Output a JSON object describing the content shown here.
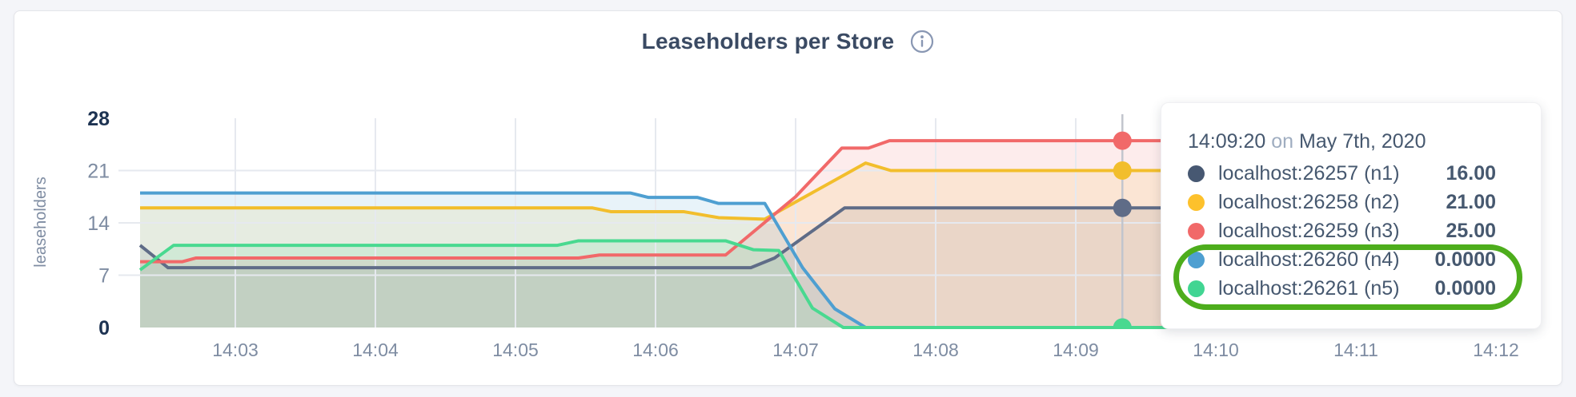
{
  "header": {
    "title": "Leaseholders per Store",
    "info_icon": "info-circle-icon"
  },
  "chart_data": {
    "type": "area",
    "title": "Leaseholders per Store",
    "xlabel": "",
    "ylabel": "leaseholders",
    "ylim": [
      0,
      28
    ],
    "y_ticks": [
      0,
      7,
      14,
      21,
      28
    ],
    "y_ticks_emphasized": [
      0,
      28
    ],
    "y_gridlines": [
      7,
      14,
      21
    ],
    "x_ticks": [
      {
        "t": 3,
        "label": "14:03"
      },
      {
        "t": 4,
        "label": "14:04"
      },
      {
        "t": 5,
        "label": "14:05"
      },
      {
        "t": 6,
        "label": "14:06"
      },
      {
        "t": 7,
        "label": "14:07"
      },
      {
        "t": 8,
        "label": "14:08"
      },
      {
        "t": 9,
        "label": "14:09"
      },
      {
        "t": 10,
        "label": "14:10"
      },
      {
        "t": 11,
        "label": "14:11"
      },
      {
        "t": 12,
        "label": "14:12"
      }
    ],
    "x_unit": "minutes after 14:00 on May 7th, 2020",
    "x_data_range": [
      2.32,
      9.72
    ],
    "grid": true,
    "legend_position": "tooltip",
    "fill_opacity": 0.13,
    "series": [
      {
        "name": "localhost:26257 (n1)",
        "color": "#5F6C87",
        "points": [
          [
            2.32,
            11
          ],
          [
            2.52,
            8
          ],
          [
            6.68,
            8
          ],
          [
            6.85,
            9.3
          ],
          [
            7.35,
            16
          ],
          [
            9.72,
            16
          ]
        ]
      },
      {
        "name": "localhost:26258 (n2)",
        "color": "#F2BE2C",
        "points": [
          [
            2.32,
            16
          ],
          [
            5.55,
            16
          ],
          [
            5.68,
            15.5
          ],
          [
            6.2,
            15.5
          ],
          [
            6.45,
            14.7
          ],
          [
            6.78,
            14.5
          ],
          [
            7.5,
            22
          ],
          [
            7.68,
            21
          ],
          [
            9.72,
            21
          ]
        ]
      },
      {
        "name": "localhost:26259 (n3)",
        "color": "#F16969",
        "points": [
          [
            2.32,
            8.8
          ],
          [
            2.62,
            8.8
          ],
          [
            2.72,
            9.3
          ],
          [
            5.45,
            9.3
          ],
          [
            5.6,
            9.7
          ],
          [
            6.5,
            9.7
          ],
          [
            7.0,
            17.5
          ],
          [
            7.33,
            24
          ],
          [
            7.52,
            24
          ],
          [
            7.67,
            25
          ],
          [
            9.72,
            25
          ]
        ]
      },
      {
        "name": "localhost:26260 (n4)",
        "color": "#4E9FD1",
        "points": [
          [
            2.32,
            18
          ],
          [
            5.82,
            18
          ],
          [
            5.95,
            17.4
          ],
          [
            6.3,
            17.4
          ],
          [
            6.45,
            16.6
          ],
          [
            6.78,
            16.6
          ],
          [
            7.05,
            8
          ],
          [
            7.28,
            2.5
          ],
          [
            7.5,
            0
          ],
          [
            9.72,
            0
          ]
        ]
      },
      {
        "name": "localhost:26261 (n5)",
        "color": "#49D990",
        "points": [
          [
            2.32,
            7.7
          ],
          [
            2.56,
            11
          ],
          [
            5.3,
            11
          ],
          [
            5.45,
            11.6
          ],
          [
            6.5,
            11.6
          ],
          [
            6.7,
            10.4
          ],
          [
            6.88,
            10.3
          ],
          [
            7.12,
            2.6
          ],
          [
            7.34,
            0
          ],
          [
            9.72,
            0
          ]
        ]
      }
    ]
  },
  "hover": {
    "time_label": "14:09:20",
    "t": 9.333,
    "values": [
      16,
      21,
      25,
      0,
      0
    ]
  },
  "tooltip": {
    "time": "14:09:20",
    "conjunction": "on",
    "date": "May 7th, 2020",
    "rows": [
      {
        "label": "localhost:26257 (n1)",
        "value": "16.00",
        "color": "#475872"
      },
      {
        "label": "localhost:26258 (n2)",
        "value": "21.00",
        "color": "#FDC12C"
      },
      {
        "label": "localhost:26259 (n3)",
        "value": "25.00",
        "color": "#F16969"
      },
      {
        "label": "localhost:26260 (n4)",
        "value": "0.0000",
        "color": "#4E9FD1"
      },
      {
        "label": "localhost:26261 (n5)",
        "value": "0.0000",
        "color": "#41D592"
      }
    ],
    "annotation": {
      "circled_rows": [
        "localhost:26260 (n4)",
        "localhost:26261 (n5)"
      ],
      "color": "#4dad1c"
    }
  },
  "colors": {
    "page_bg": "#f4f5f9",
    "card_bg": "#ffffff",
    "title_text": "#3a4a63",
    "axis_text": "#7e8ca2",
    "axis_text_emphasized": "#1d3352",
    "grid_line": "#e6e9ef",
    "hover_line": "#c2c5cd"
  }
}
